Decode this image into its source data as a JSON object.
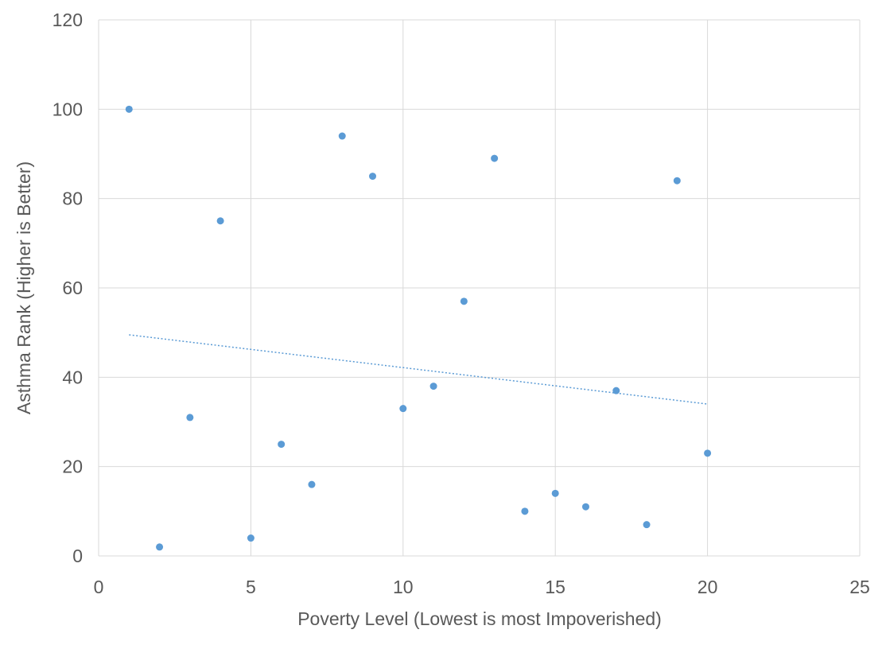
{
  "chart_data": {
    "type": "scatter",
    "title": "",
    "xlabel": "Poverty Level (Lowest is most Impoverished)",
    "ylabel": "Asthma Rank (Higher is Better)",
    "xlim": [
      0,
      25
    ],
    "ylim": [
      0,
      120
    ],
    "xticks": [
      0,
      5,
      10,
      15,
      20,
      25
    ],
    "yticks": [
      0,
      20,
      40,
      60,
      80,
      100,
      120
    ],
    "grid": true,
    "legend": "none",
    "series": [
      {
        "color": "#5b9bd5",
        "points": [
          {
            "x": 1,
            "y": 100
          },
          {
            "x": 2,
            "y": 2
          },
          {
            "x": 3,
            "y": 31
          },
          {
            "x": 4,
            "y": 75
          },
          {
            "x": 5,
            "y": 4
          },
          {
            "x": 6,
            "y": 25
          },
          {
            "x": 7,
            "y": 16
          },
          {
            "x": 8,
            "y": 94
          },
          {
            "x": 9,
            "y": 85
          },
          {
            "x": 10,
            "y": 33
          },
          {
            "x": 11,
            "y": 38
          },
          {
            "x": 12,
            "y": 57
          },
          {
            "x": 13,
            "y": 89
          },
          {
            "x": 14,
            "y": 10
          },
          {
            "x": 15,
            "y": 14
          },
          {
            "x": 16,
            "y": 11
          },
          {
            "x": 17,
            "y": 37
          },
          {
            "x": 18,
            "y": 7
          },
          {
            "x": 19,
            "y": 84
          },
          {
            "x": 20,
            "y": 23
          }
        ]
      }
    ],
    "trendline": {
      "type": "linear",
      "style": "dotted",
      "color": "#5b9bd5",
      "from": {
        "x": 1,
        "y": 49.5
      },
      "to": {
        "x": 20,
        "y": 34
      }
    }
  }
}
